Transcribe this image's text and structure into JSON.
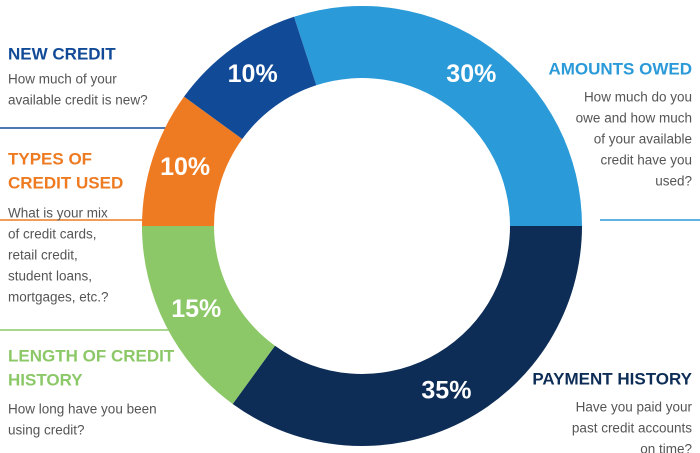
{
  "chart_data": {
    "type": "donut",
    "categories": [
      {
        "title": [
          "AMOUNTS OWED"
        ],
        "description": [
          "How much do you",
          "owe and how much",
          "of your available",
          "credit have you",
          "used?"
        ]
      },
      {
        "title": [
          "PAYMENT HISTORY"
        ],
        "description": [
          "Have you paid your",
          "past credit accounts",
          "on time?"
        ]
      },
      {
        "title": [
          "LENGTH OF CREDIT",
          "HISTORY"
        ],
        "description": [
          "How long have you been",
          "using credit?"
        ]
      },
      {
        "title": [
          "TYPES OF",
          "CREDIT USED"
        ],
        "description": [
          "What is your mix",
          "of credit cards,",
          "retail credit,",
          "student loans,",
          "mortgages, etc.?"
        ]
      },
      {
        "title": [
          "NEW CREDIT"
        ],
        "description": [
          "How much of your",
          "available credit is new?"
        ]
      }
    ],
    "values": [
      30,
      35,
      15,
      10,
      10
    ],
    "value_labels": [
      "30%",
      "35%",
      "15%",
      "10%",
      "10%"
    ],
    "colors": [
      "#2a9ad8",
      "#0d2d56",
      "#8cc867",
      "#ee7b22",
      "#114a97"
    ]
  }
}
